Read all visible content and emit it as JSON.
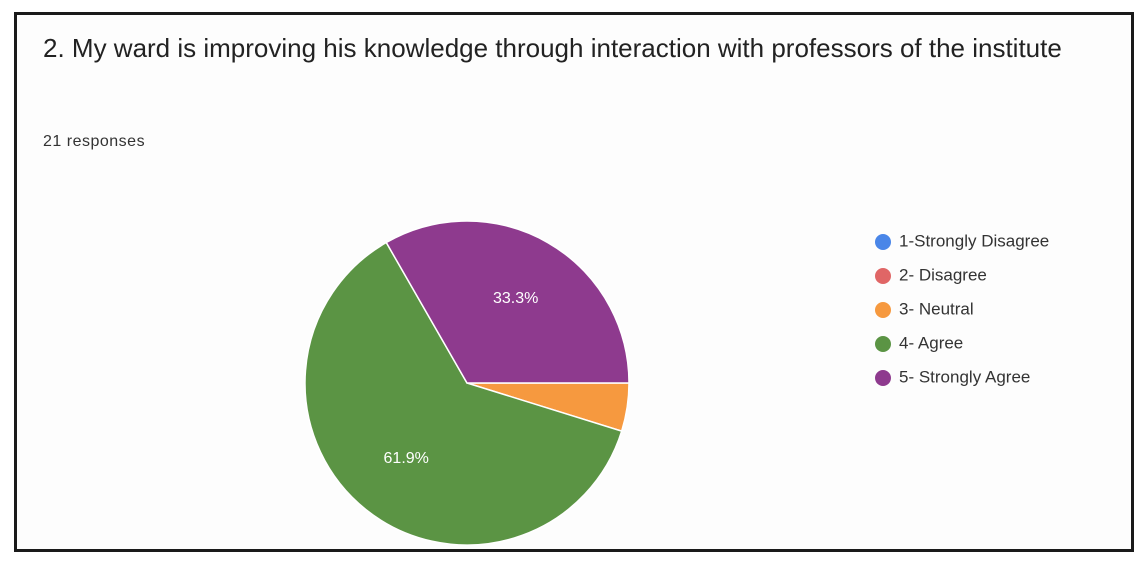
{
  "chart_data": {
    "type": "pie",
    "title": "2. My ward is improving his knowledge through interaction with professors of the institute",
    "subtitle": "21 responses",
    "categories": [
      "1-Strongly Disagree",
      "2- Disagree",
      "3- Neutral",
      "4- Agree",
      "5- Strongly Agree"
    ],
    "values": [
      0,
      0,
      4.8,
      61.9,
      33.3
    ],
    "value_labels": [
      null,
      null,
      null,
      "61.9%",
      "33.3%"
    ],
    "colors": [
      "#4a86e8",
      "#e06666",
      "#f6993f",
      "#5b9444",
      "#8e3a8e"
    ],
    "legend": "right"
  }
}
